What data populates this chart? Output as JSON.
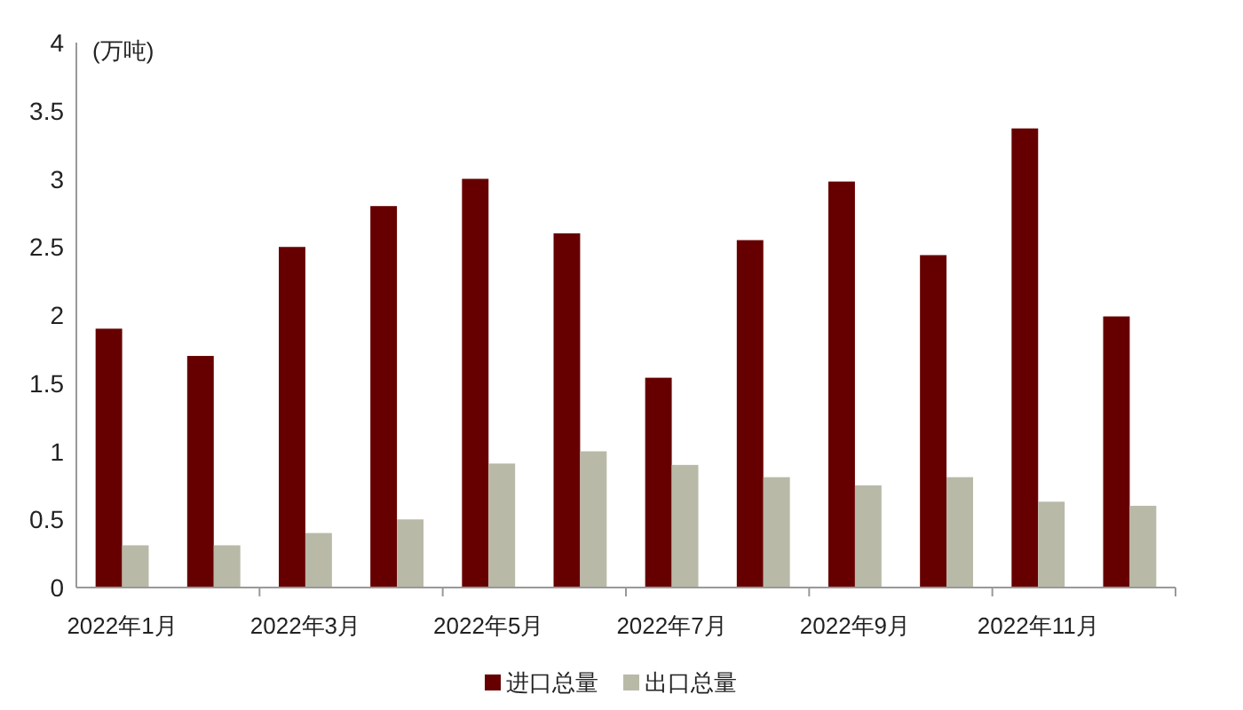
{
  "chart_data": {
    "type": "bar",
    "ylabel": "(万吨)",
    "categories": [
      "2022年1月",
      null,
      "2022年3月",
      null,
      "2022年5月",
      null,
      "2022年7月",
      null,
      "2022年9月",
      null,
      "2022年11月",
      null
    ],
    "series": [
      {
        "name": "进口总量",
        "color": "#660000",
        "values": [
          1.9,
          1.7,
          2.5,
          2.8,
          3.0,
          2.6,
          1.54,
          2.55,
          2.98,
          2.44,
          3.37,
          1.99
        ]
      },
      {
        "name": "出口总量",
        "color": "#b9b9a8",
        "values": [
          0.31,
          0.31,
          0.4,
          0.5,
          0.91,
          1.0,
          0.9,
          0.81,
          0.75,
          0.81,
          0.63,
          0.6
        ]
      }
    ],
    "ylim": [
      0,
      4
    ],
    "yticks": [
      0,
      0.5,
      1,
      1.5,
      2,
      2.5,
      3,
      3.5,
      4
    ],
    "grid": false,
    "legend": "bottom"
  }
}
